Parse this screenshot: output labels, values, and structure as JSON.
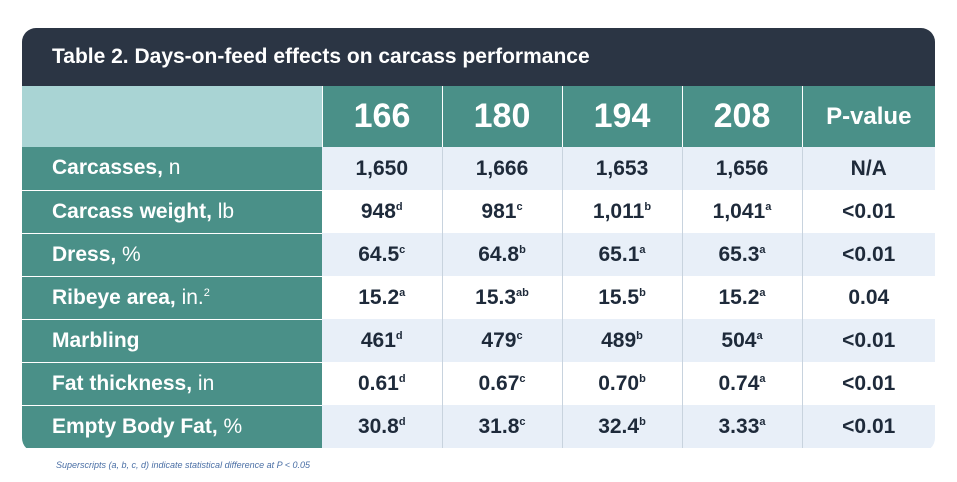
{
  "title": "Table 2. Days-on-feed effects on carcass performance",
  "columns": [
    "166",
    "180",
    "194",
    "208",
    "P-value"
  ],
  "rows": [
    {
      "label": "Carcasses,",
      "unit": " n",
      "unit_sup": "",
      "cells": [
        {
          "v": "1,650",
          "s": ""
        },
        {
          "v": "1,666",
          "s": ""
        },
        {
          "v": "1,653",
          "s": ""
        },
        {
          "v": "1,656",
          "s": ""
        },
        {
          "v": "N/A",
          "s": ""
        }
      ]
    },
    {
      "label": "Carcass weight,",
      "unit": " lb",
      "unit_sup": "",
      "cells": [
        {
          "v": "948",
          "s": "d"
        },
        {
          "v": "981",
          "s": "c"
        },
        {
          "v": "1,011",
          "s": "b"
        },
        {
          "v": "1,041",
          "s": "a"
        },
        {
          "v": "<0.01",
          "s": ""
        }
      ]
    },
    {
      "label": "Dress,",
      "unit": " %",
      "unit_sup": "",
      "cells": [
        {
          "v": "64.5",
          "s": "c"
        },
        {
          "v": "64.8",
          "s": "b"
        },
        {
          "v": "65.1",
          "s": "a"
        },
        {
          "v": "65.3",
          "s": "a"
        },
        {
          "v": "<0.01",
          "s": ""
        }
      ]
    },
    {
      "label": "Ribeye area,",
      "unit": " in.",
      "unit_sup": "2",
      "cells": [
        {
          "v": "15.2",
          "s": "a"
        },
        {
          "v": "15.3",
          "s": "ab"
        },
        {
          "v": "15.5",
          "s": "b"
        },
        {
          "v": "15.2",
          "s": "a"
        },
        {
          "v": "0.04",
          "s": ""
        }
      ]
    },
    {
      "label": "Marbling",
      "unit": "",
      "unit_sup": "",
      "cells": [
        {
          "v": "461",
          "s": "d"
        },
        {
          "v": "479",
          "s": "c"
        },
        {
          "v": "489",
          "s": "b"
        },
        {
          "v": "504",
          "s": "a"
        },
        {
          "v": "<0.01",
          "s": ""
        }
      ]
    },
    {
      "label": "Fat thickness,",
      "unit": " in",
      "unit_sup": "",
      "cells": [
        {
          "v": "0.61",
          "s": "d"
        },
        {
          "v": "0.67",
          "s": "c"
        },
        {
          "v": "0.70",
          "s": "b"
        },
        {
          "v": "0.74",
          "s": "a"
        },
        {
          "v": "<0.01",
          "s": ""
        }
      ]
    },
    {
      "label": "Empty Body Fat,",
      "unit": " %",
      "unit_sup": "",
      "cells": [
        {
          "v": "30.8",
          "s": "d"
        },
        {
          "v": "31.8",
          "s": "c"
        },
        {
          "v": "32.4",
          "s": "b"
        },
        {
          "v": "3.33",
          "s": "a"
        },
        {
          "v": "<0.01",
          "s": ""
        }
      ]
    }
  ],
  "footnote": "Superscripts (a, b, c, d) indicate statistical difference at P < 0.05",
  "colors": {
    "title_bg": "#2b3544",
    "teal": "#4a9088",
    "corner": "#a9d4d4",
    "row_alt": "#e8eff8",
    "text": "#1e2a3a"
  }
}
